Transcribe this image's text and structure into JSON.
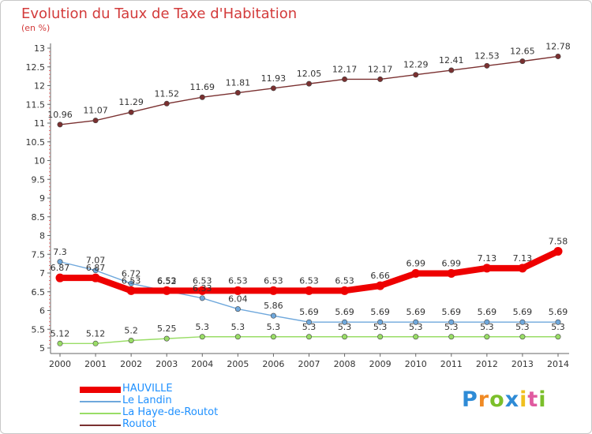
{
  "title": "Evolution du Taux de Taxe d'Habitation",
  "unit": "(en %)",
  "brand": {
    "letters": [
      "P",
      "r",
      "o",
      "x",
      "i",
      "t",
      "i"
    ],
    "colors": [
      "#2e8bd6",
      "#f08a24",
      "#7bbf2a",
      "#2e8bd6",
      "#f0c020",
      "#e05aa0",
      "#7bbf2a"
    ]
  },
  "chart_data": {
    "type": "line",
    "x": [
      "2000",
      "2001",
      "2002",
      "2003",
      "2004",
      "2005",
      "2006",
      "2007",
      "2008",
      "2009",
      "2010",
      "2011",
      "2012",
      "2013",
      "2014"
    ],
    "yticks": [
      "5",
      "5.5",
      "6",
      "6.5",
      "7",
      "7.5",
      "8",
      "8.5",
      "9",
      "9.5",
      "10",
      "10.5",
      "11",
      "11.5",
      "12",
      "12.5",
      "13"
    ],
    "ylim": [
      5,
      13
    ],
    "grid": false,
    "legend_position": "bottom-left",
    "series": [
      {
        "name": "HAUVILLE",
        "color": "#ee0000",
        "values": [
          6.87,
          6.87,
          6.53,
          6.53,
          6.53,
          6.53,
          6.53,
          6.53,
          6.53,
          6.66,
          6.99,
          6.99,
          7.13,
          7.13,
          7.58
        ]
      },
      {
        "name": "Le Landin",
        "color": "#6fa8dc",
        "values": [
          7.3,
          7.07,
          6.72,
          6.52,
          6.33,
          6.04,
          5.86,
          5.69,
          5.69,
          5.69,
          5.69,
          5.69,
          5.69,
          5.69,
          5.69
        ]
      },
      {
        "name": "La Haye-de-Routot",
        "color": "#99dd66",
        "values": [
          5.12,
          5.12,
          5.2,
          5.25,
          5.3,
          5.3,
          5.3,
          5.3,
          5.3,
          5.3,
          5.3,
          5.3,
          5.3,
          5.3,
          5.3
        ]
      },
      {
        "name": "Routot",
        "color": "#7a3030",
        "values": [
          10.96,
          11.07,
          11.29,
          11.52,
          11.69,
          11.81,
          11.93,
          12.05,
          12.17,
          12.17,
          12.29,
          12.41,
          12.53,
          12.65,
          12.78
        ]
      }
    ]
  }
}
